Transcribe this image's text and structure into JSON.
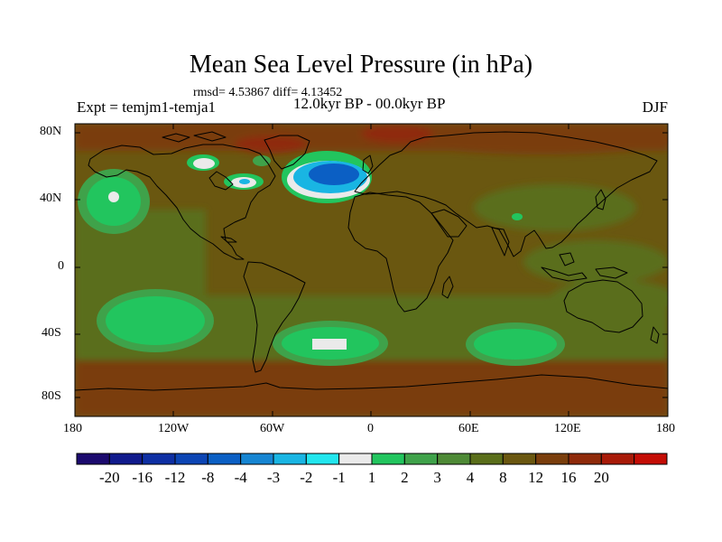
{
  "title": "Mean Sea Level Pressure (in hPa)",
  "stats": "rmsd= 4.53867 diff= 4.13452",
  "left_label": "Expt = temjm1-temja1",
  "center_label": "12.0kyr BP - 00.0kyr BP",
  "right_label": "DJF",
  "lat_ticks": [
    "80N",
    "40N",
    "0",
    "40S",
    "80S"
  ],
  "lon_ticks": [
    "180",
    "120W",
    "60W",
    "0",
    "60E",
    "120E",
    "180"
  ],
  "colorbar": {
    "colors": [
      "#1b0a6e",
      "#101a8c",
      "#0e2fa3",
      "#0c45b4",
      "#0b5fc4",
      "#1685d2",
      "#19b5e3",
      "#22e6ee",
      "#eaeaea",
      "#22c55e",
      "#3fa24a",
      "#4e8a36",
      "#5a6e1a",
      "#6a5710",
      "#7a3e0c",
      "#8f2a0a",
      "#a81a08",
      "#c40d05"
    ],
    "labels": [
      "-20",
      "-16",
      "-12",
      "-8",
      "-4",
      "-3",
      "-2",
      "-1",
      "1",
      "2",
      "3",
      "4",
      "8",
      "12",
      "16",
      "20"
    ]
  },
  "colors": {
    "ocean_base": "#6a5710",
    "land_base": "#6a5a12",
    "high_anomaly": "#7a3e0c",
    "mid_anomaly": "#5a6e1a",
    "light_green": "#22c55e",
    "mid_green": "#3fa24a",
    "blue": "#19b5e3",
    "deep_blue": "#0b5fc4",
    "white": "#eaeaea",
    "coast": "#000000"
  }
}
